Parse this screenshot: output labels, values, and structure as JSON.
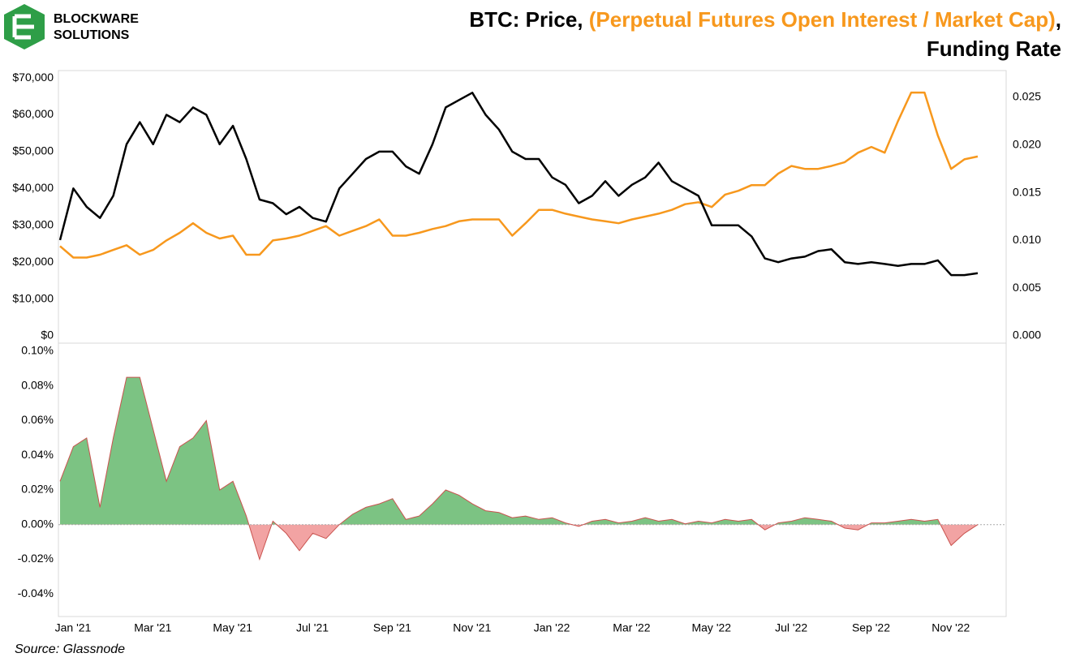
{
  "logo": {
    "line1": "BLOCKWARE",
    "line2": "SOLUTIONS"
  },
  "title_parts": [
    "BTC: Price,",
    "(Perpetual Futures Open Interest / Market Cap)",
    ",",
    "Funding Rate"
  ],
  "source": "Source: Glassnode",
  "chart_data": [
    {
      "type": "line",
      "series": [
        {
          "color": "#000000",
          "axis": "y",
          "values": [
            26000,
            40000,
            35000,
            32000,
            38000,
            52000,
            58000,
            52000,
            60000,
            58000,
            62000,
            60000,
            52000,
            57000,
            48000,
            37000,
            36000,
            33000,
            35000,
            32000,
            31000,
            40000,
            44000,
            48000,
            50000,
            50000,
            46000,
            44000,
            52000,
            62000,
            64000,
            66000,
            60000,
            56000,
            50000,
            48000,
            48000,
            43000,
            41000,
            36000,
            38000,
            42000,
            38000,
            41000,
            43000,
            47000,
            42000,
            40000,
            38000,
            30000,
            30000,
            30000,
            27000,
            21000,
            20000,
            21000,
            21500,
            23000,
            23500,
            20000,
            19500,
            20000,
            19500,
            19000,
            19500,
            19500,
            20500,
            16500,
            16500,
            17000
          ]
        },
        {
          "color": "#f7981d",
          "axis": "y2",
          "values": [
            0.0094,
            0.0082,
            0.0082,
            0.0085,
            0.009,
            0.0095,
            0.0085,
            0.009,
            0.01,
            0.0108,
            0.0118,
            0.0108,
            0.0102,
            0.0105,
            0.0085,
            0.0085,
            0.01,
            0.0102,
            0.0105,
            0.011,
            0.0115,
            0.0105,
            0.011,
            0.0115,
            0.0122,
            0.0105,
            0.0105,
            0.0108,
            0.0112,
            0.0115,
            0.012,
            0.0122,
            0.0122,
            0.0122,
            0.0105,
            0.0118,
            0.0132,
            0.0132,
            0.0128,
            0.0125,
            0.0122,
            0.012,
            0.0118,
            0.0122,
            0.0125,
            0.0128,
            0.0132,
            0.0138,
            0.014,
            0.0135,
            0.0148,
            0.0152,
            0.0158,
            0.0158,
            0.017,
            0.0178,
            0.0175,
            0.0175,
            0.0178,
            0.0182,
            0.0192,
            0.0198,
            0.0192,
            0.0225,
            0.0255,
            0.0255,
            0.021,
            0.0175,
            0.0185,
            0.0188
          ]
        }
      ],
      "ylim": [
        0,
        72000
      ],
      "yticks": [
        {
          "value": 0,
          "label": "$0"
        },
        {
          "value": 10000,
          "label": "$10,000"
        },
        {
          "value": 20000,
          "label": "$20,000"
        },
        {
          "value": 30000,
          "label": "$30,000"
        },
        {
          "value": 40000,
          "label": "$40,000"
        },
        {
          "value": 50000,
          "label": "$50,000"
        },
        {
          "value": 60000,
          "label": "$60,000"
        },
        {
          "value": 70000,
          "label": "$70,000"
        }
      ],
      "y2lim": [
        0,
        0.0278
      ],
      "y2ticks": [
        {
          "value": 0,
          "label": "0.000"
        },
        {
          "value": 0.005,
          "label": "0.005"
        },
        {
          "value": 0.01,
          "label": "0.010"
        },
        {
          "value": 0.015,
          "label": "0.015"
        },
        {
          "value": 0.02,
          "label": "0.020"
        },
        {
          "value": 0.025,
          "label": "0.025"
        }
      ]
    },
    {
      "type": "area",
      "categories": [
        "Jan '21",
        null,
        null,
        null,
        null,
        null,
        "Mar '21",
        null,
        null,
        null,
        null,
        null,
        "May '21",
        null,
        null,
        null,
        null,
        null,
        "Jul '21",
        null,
        null,
        null,
        null,
        null,
        "Sep '21",
        null,
        null,
        null,
        null,
        null,
        "Nov '21",
        null,
        null,
        null,
        null,
        null,
        "Jan '22",
        null,
        null,
        null,
        null,
        null,
        "Mar '22",
        null,
        null,
        null,
        null,
        null,
        "May '22",
        null,
        null,
        null,
        null,
        null,
        "Jul '22",
        null,
        null,
        null,
        null,
        null,
        "Sep '22",
        null,
        null,
        null,
        null,
        null,
        "Nov '22",
        null,
        null,
        null
      ],
      "values": [
        0.025,
        0.045,
        0.05,
        0.01,
        0.05,
        0.085,
        0.085,
        0.055,
        0.025,
        0.045,
        0.05,
        0.06,
        0.02,
        0.025,
        0.005,
        -0.02,
        0.002,
        -0.005,
        -0.015,
        -0.005,
        -0.008,
        0,
        0.006,
        0.01,
        0.012,
        0.015,
        0.003,
        0.005,
        0.012,
        0.02,
        0.017,
        0.012,
        0.008,
        0.007,
        0.004,
        0.005,
        0.003,
        0.004,
        0.001,
        -0.001,
        0.002,
        0.003,
        0.001,
        0.002,
        0.004,
        0.002,
        0.003,
        0.0005,
        0.002,
        0.001,
        0.003,
        0.002,
        0.003,
        -0.003,
        0.001,
        0.002,
        0.004,
        0.003,
        0.002,
        -0.002,
        -0.003,
        0.001,
        0.001,
        0.002,
        0.003,
        0.002,
        0.003,
        -0.012,
        -0.005,
        0
      ],
      "positive_color": "#7cc383",
      "negative_color": "#f2a3a3",
      "line_color": "#c9534f",
      "ylim": [
        -0.053,
        0.1047
      ],
      "yticks": [
        {
          "value": 0.1,
          "label": "0.10%"
        },
        {
          "value": 0.08,
          "label": "0.08%"
        },
        {
          "value": 0.06,
          "label": "0.06%"
        },
        {
          "value": 0.04,
          "label": "0.04%"
        },
        {
          "value": 0.02,
          "label": "0.02%"
        },
        {
          "value": 0,
          "label": "0.00%"
        },
        {
          "value": -0.02,
          "label": "-0.02%"
        },
        {
          "value": -0.04,
          "label": "-0.04%"
        }
      ]
    }
  ]
}
